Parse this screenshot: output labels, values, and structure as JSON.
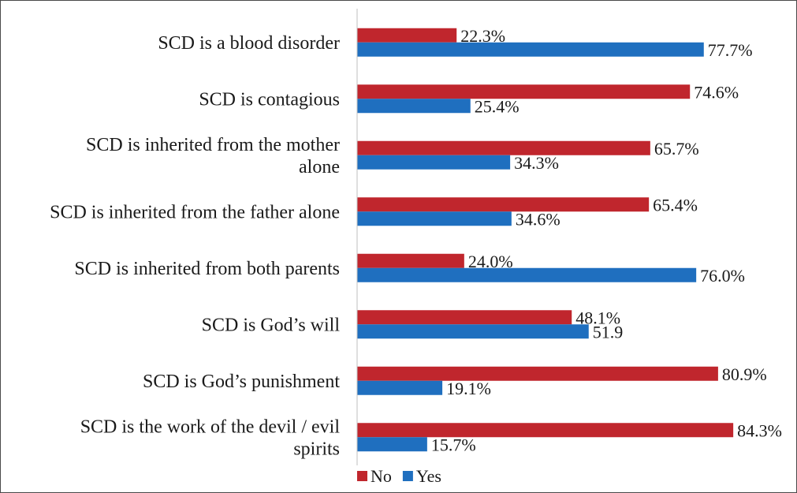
{
  "chart_data": {
    "type": "bar",
    "orientation": "horizontal",
    "categories": [
      [
        "SCD is a blood disorder"
      ],
      [
        "SCD is contagious"
      ],
      [
        "SCD is inherited from the mother",
        "alone"
      ],
      [
        "SCD is inherited from the father alone"
      ],
      [
        "SCD is inherited from both parents"
      ],
      [
        "SCD is God’s will"
      ],
      [
        "SCD is God’s punishment"
      ],
      [
        "SCD is the work of the devil / evil",
        "spirits"
      ]
    ],
    "series": [
      {
        "name": "No",
        "color": "#c0262d",
        "values": [
          22.3,
          74.6,
          65.7,
          65.4,
          24.0,
          48.1,
          80.9,
          84.3
        ],
        "labels": [
          "22.3%",
          "74.6%",
          "65.7%",
          "65.4%",
          "24.0%",
          "48.1%",
          "80.9%",
          "84.3%"
        ]
      },
      {
        "name": "Yes",
        "color": "#1f6fbf",
        "values": [
          77.7,
          25.4,
          34.3,
          34.6,
          76.0,
          51.9,
          19.1,
          15.7
        ],
        "labels": [
          "77.7%",
          "25.4%",
          "34.3%",
          "34.6%",
          "76.0%",
          "51.9",
          "19.1%",
          "15.7%"
        ]
      }
    ],
    "xlim": [
      0,
      100
    ],
    "grid": false,
    "legend": "bottom-left"
  }
}
